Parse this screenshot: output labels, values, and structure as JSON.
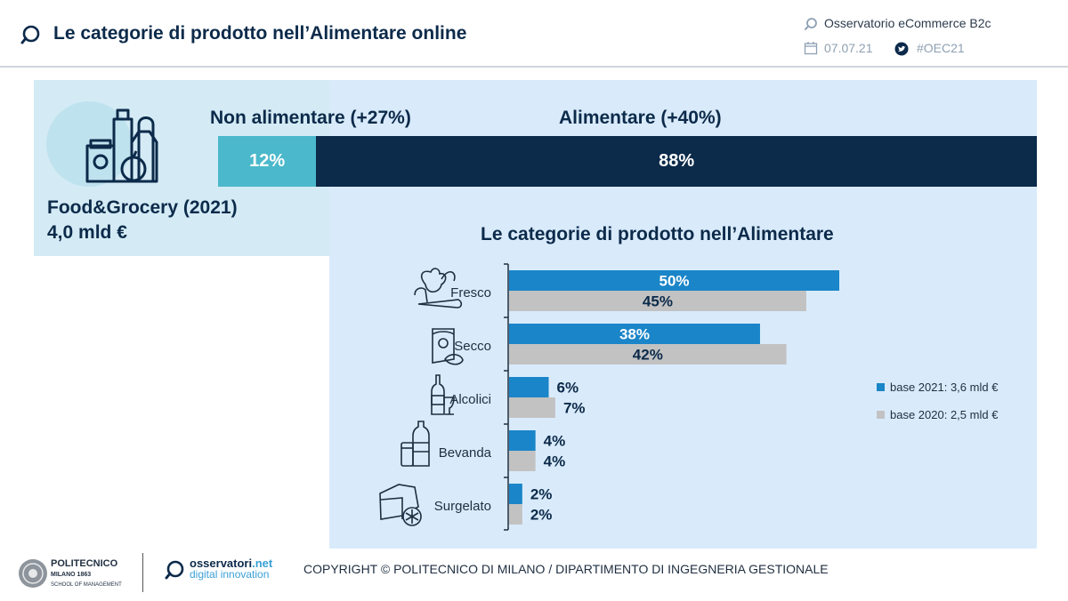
{
  "header": {
    "title": "Le categorie di prodotto nell’Alimentare online",
    "source": "Osservatorio eCommerce B2c",
    "date": "07.07.21",
    "hashtag": "#OEC21"
  },
  "overview": {
    "title_line1": "Food&Grocery (2021)",
    "title_line2": "4,0 mld €",
    "segments": [
      {
        "label": "Non alimentare (+27%)",
        "value": 12,
        "value_text": "12%",
        "color": "#4bb8cb"
      },
      {
        "label": "Alimentare (+40%)",
        "value": 88,
        "value_text": "88%",
        "color": "#0c2a4a"
      }
    ]
  },
  "chart_data": {
    "type": "bar",
    "orientation": "horizontal",
    "title": "Le categorie di prodotto nell’Alimentare",
    "categories": [
      "Fresco",
      "Secco",
      "Alcolici",
      "Bevanda",
      "Surgelato"
    ],
    "series": [
      {
        "name": "base 2021: 3,6 mld €",
        "color": "#1a85c8",
        "values": [
          50,
          38,
          6,
          4,
          2
        ],
        "labels": [
          "50%",
          "38%",
          "6%",
          "4%",
          "2%"
        ]
      },
      {
        "name": "base 2020: 2,5 mld €",
        "color": "#c2c2c2",
        "values": [
          45,
          42,
          7,
          4,
          2
        ],
        "labels": [
          "45%",
          "42%",
          "7%",
          "4%",
          "2%"
        ]
      }
    ],
    "xlim": [
      0,
      55
    ],
    "legend_position": "right"
  },
  "footer": {
    "polimi_name": "POLITECNICO",
    "polimi_sub1": "MILANO 1863",
    "polimi_sub2": "SCHOOL OF MANAGEMENT",
    "osservatori_name1": "osservatori",
    "osservatori_name2": ".net",
    "osservatori_sub": "digital innovation",
    "copyright": "COPYRIGHT © POLITECNICO DI MILANO / DIPARTIMENTO DI INGEGNERIA GESTIONALE"
  }
}
